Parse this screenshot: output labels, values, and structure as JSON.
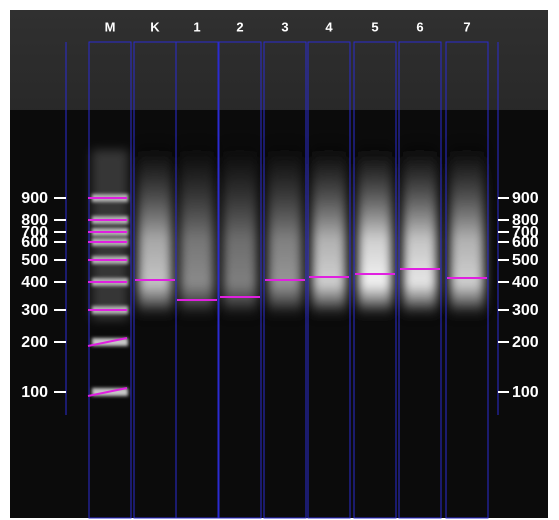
{
  "lanes": [
    "M",
    "K",
    "1",
    "2",
    "3",
    "4",
    "5",
    "6",
    "7"
  ],
  "markers": [
    900,
    800,
    700,
    600,
    500,
    400,
    300,
    200,
    100
  ]
}
